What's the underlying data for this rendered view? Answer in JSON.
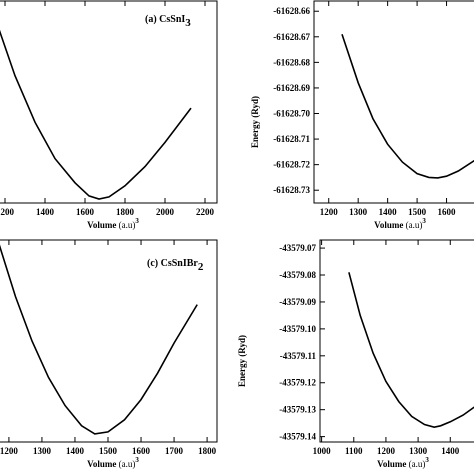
{
  "chart_data": [
    {
      "type": "line",
      "title": "(a)  CsSnI",
      "title_sub": "3",
      "xlabel": "Volume",
      "xlabel_unit": "(a.u)",
      "xlabel_sup": "3",
      "ylabel": "",
      "xlim": [
        1170,
        2260
      ],
      "ylim": [
        0,
        1
      ],
      "xticks": [
        1200,
        1400,
        1600,
        1800,
        2000,
        2200
      ],
      "yticks": [],
      "x": [
        1170,
        1250,
        1350,
        1450,
        1550,
        1620,
        1670,
        1720,
        1800,
        1900,
        2000,
        2130
      ],
      "y": [
        0.86,
        0.63,
        0.4,
        0.22,
        0.1,
        0.035,
        0.02,
        0.03,
        0.085,
        0.18,
        0.3,
        0.47
      ]
    },
    {
      "type": "line",
      "title": "",
      "xlabel": "Volume",
      "xlabel_unit": "(a.u)",
      "xlabel_sup": "3",
      "ylabel": "Energy (Ryd)",
      "xlim": [
        1150,
        1700
      ],
      "ylim": [
        -61628.735,
        -61628.656
      ],
      "xticks": [
        1200,
        1300,
        1400,
        1500,
        1600
      ],
      "yticks": [
        -61628.66,
        -61628.67,
        -61628.68,
        -61628.69,
        -61628.7,
        -61628.71,
        -61628.72,
        -61628.73
      ],
      "x": [
        1245,
        1300,
        1350,
        1400,
        1450,
        1500,
        1540,
        1570,
        1600,
        1640,
        1700
      ],
      "y": [
        -61628.669,
        -61628.688,
        -61628.702,
        -61628.712,
        -61628.719,
        -61628.7235,
        -61628.725,
        -61628.7252,
        -61628.7245,
        -61628.7225,
        -61628.718
      ]
    },
    {
      "type": "line",
      "title": "(c)  CsSnIBr",
      "title_sub": "2",
      "xlabel": "Volume",
      "xlabel_unit": "(a.u)",
      "xlabel_sup": "3",
      "ylabel": "",
      "xlim": [
        1170,
        1830
      ],
      "ylim": [
        0,
        1
      ],
      "xticks": [
        1200,
        1300,
        1400,
        1500,
        1600,
        1700,
        1800
      ],
      "yticks": [],
      "x": [
        1170,
        1220,
        1270,
        1320,
        1370,
        1420,
        1460,
        1500,
        1550,
        1600,
        1650,
        1700,
        1770
      ],
      "y": [
        0.98,
        0.72,
        0.5,
        0.32,
        0.18,
        0.08,
        0.04,
        0.05,
        0.11,
        0.21,
        0.34,
        0.49,
        0.68
      ]
    },
    {
      "type": "line",
      "title": "",
      "xlabel": "Volume",
      "xlabel_unit": "(a.u)",
      "xlabel_sup": "3",
      "ylabel": "Energy (Ryd)",
      "xlim": [
        995,
        1480
      ],
      "ylim": [
        -43579.142,
        -43579.067
      ],
      "xticks": [
        1000,
        1100,
        1200,
        1300,
        1400
      ],
      "yticks": [
        -43579.07,
        -43579.08,
        -43579.09,
        -43579.1,
        -43579.11,
        -43579.12,
        -43579.13,
        -43579.14
      ],
      "x": [
        1085,
        1120,
        1160,
        1200,
        1240,
        1280,
        1320,
        1350,
        1370,
        1400,
        1440,
        1475
      ],
      "y": [
        -43579.079,
        -43579.095,
        -43579.109,
        -43579.1195,
        -43579.127,
        -43579.1325,
        -43579.1355,
        -43579.1365,
        -43579.136,
        -43579.1345,
        -43579.132,
        -43579.129
      ]
    }
  ]
}
